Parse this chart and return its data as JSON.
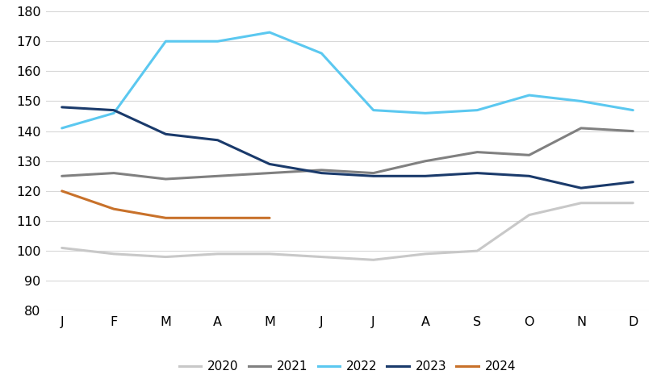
{
  "months": [
    "J",
    "F",
    "M",
    "A",
    "M",
    "J",
    "J",
    "A",
    "S",
    "O",
    "N",
    "D"
  ],
  "series": {
    "2020": [
      101,
      99,
      98,
      99,
      99,
      98,
      97,
      99,
      100,
      112,
      116,
      116
    ],
    "2021": [
      125,
      126,
      124,
      125,
      126,
      127,
      126,
      130,
      133,
      132,
      141,
      140
    ],
    "2022": [
      141,
      146,
      170,
      170,
      173,
      166,
      147,
      146,
      147,
      152,
      150,
      147
    ],
    "2023": [
      148,
      147,
      139,
      137,
      129,
      126,
      125,
      125,
      126,
      125,
      121,
      123
    ],
    "2024": [
      120,
      114,
      111,
      111,
      111,
      null,
      null,
      null,
      null,
      null,
      null,
      null
    ]
  },
  "colors": {
    "2020": "#c8c8c8",
    "2021": "#808080",
    "2022": "#5bc8f0",
    "2023": "#1a3a6b",
    "2024": "#c8712a"
  },
  "ylim": [
    80,
    180
  ],
  "yticks": [
    80,
    90,
    100,
    110,
    120,
    130,
    140,
    150,
    160,
    170,
    180
  ],
  "background_color": "#ffffff",
  "grid_color": "#d8d8d8",
  "linewidth": 2.2
}
